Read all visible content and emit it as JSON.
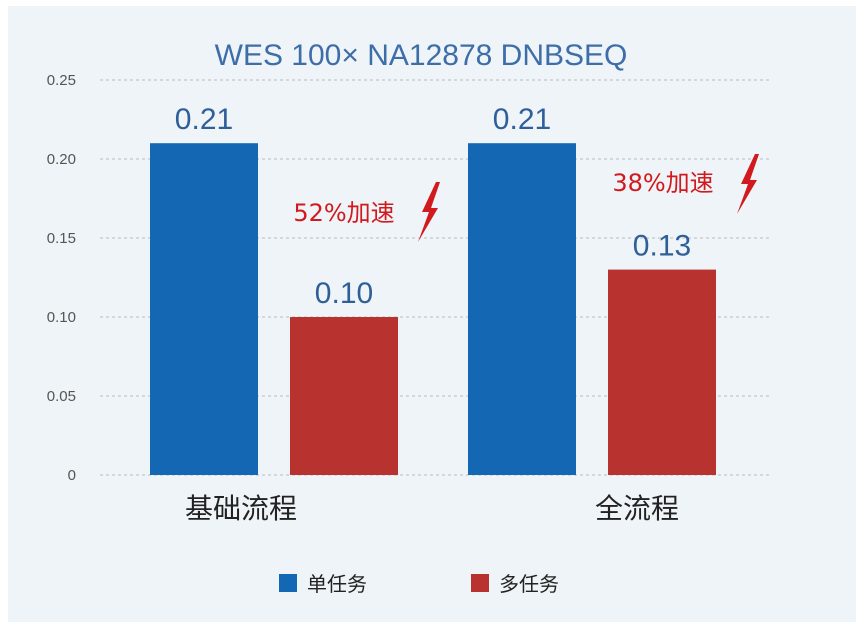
{
  "chart_data": {
    "type": "bar",
    "title": "WES 100× NA12878 DNBSEQ",
    "categories": [
      "基础流程",
      "全流程"
    ],
    "series": [
      {
        "name": "单任务",
        "values": [
          0.21,
          0.21
        ],
        "labels": [
          "0.21",
          "0.21"
        ],
        "color": "#1467b3"
      },
      {
        "name": "多任务",
        "values": [
          0.1,
          0.13
        ],
        "labels": [
          "0.10",
          "0.13"
        ],
        "color": "#b8332f"
      }
    ],
    "ylim": [
      0,
      0.25
    ],
    "yticks": [
      "0",
      "0.05",
      "0.10",
      "0.15",
      "0.20",
      "0.25"
    ],
    "grid": true,
    "legend": "bottom",
    "annotations": [
      {
        "text": "52%加速",
        "category": "基础流程",
        "color": "#d2191d",
        "icon": "lightning-bolt-icon"
      },
      {
        "text": "38%加速",
        "category": "全流程",
        "color": "#d2191d",
        "icon": "lightning-bolt-icon"
      }
    ]
  }
}
